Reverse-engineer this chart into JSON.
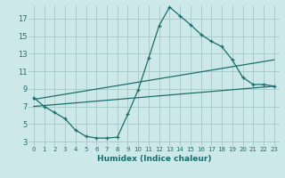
{
  "title": "",
  "xlabel": "Humidex (Indice chaleur)",
  "background_color": "#cce8e8",
  "grid_color": "#aacccc",
  "line_color": "#1a6e6e",
  "xlim": [
    -0.5,
    23.5
  ],
  "ylim": [
    2.5,
    18.5
  ],
  "xticks": [
    0,
    1,
    2,
    3,
    4,
    5,
    6,
    7,
    8,
    9,
    10,
    11,
    12,
    13,
    14,
    15,
    16,
    17,
    18,
    19,
    20,
    21,
    22,
    23
  ],
  "yticks": [
    3,
    5,
    7,
    9,
    11,
    13,
    15,
    17
  ],
  "line1_x": [
    0,
    1,
    2,
    3,
    4,
    5,
    6,
    7,
    8,
    9,
    10,
    11,
    12,
    13,
    14,
    15,
    16,
    17,
    18,
    19,
    20,
    21,
    22,
    23
  ],
  "line1_y": [
    8.0,
    7.0,
    6.3,
    5.6,
    4.3,
    3.6,
    3.4,
    3.4,
    3.5,
    6.1,
    8.9,
    12.5,
    16.2,
    18.3,
    17.3,
    16.3,
    15.2,
    14.4,
    13.8,
    12.3,
    10.3,
    9.5,
    9.5,
    9.3
  ],
  "line2_x": [
    0,
    23
  ],
  "line2_y": [
    7.8,
    12.3
  ],
  "line3_x": [
    0,
    23
  ],
  "line3_y": [
    7.0,
    9.3
  ]
}
